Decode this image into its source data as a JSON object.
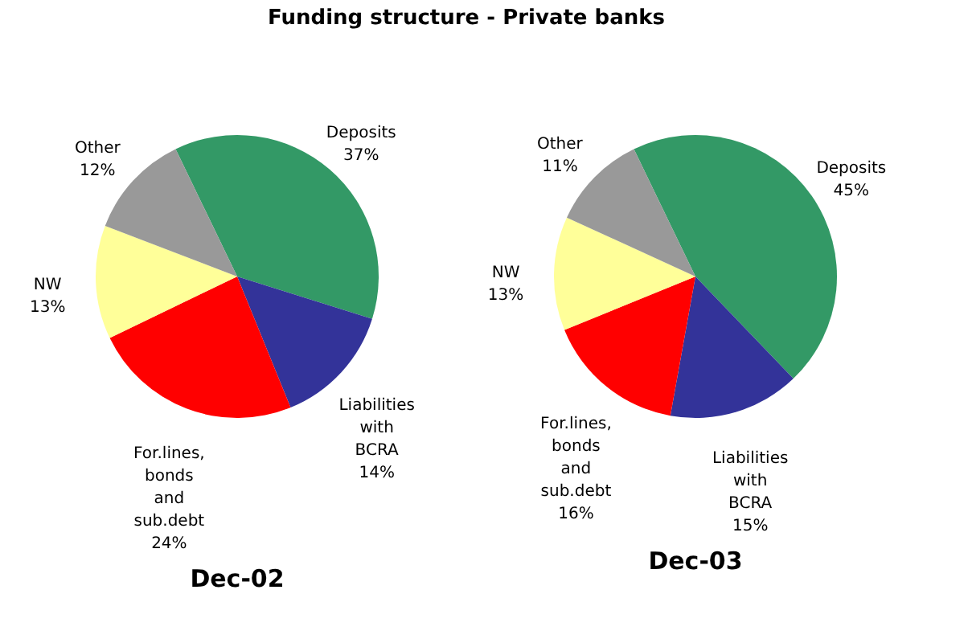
{
  "chart_data": [
    {
      "type": "pie",
      "title": "Dec-02",
      "annotations": [
        "Funding structure - Private banks"
      ],
      "categories": [
        "Deposits",
        "Liabilities with BCRA",
        "For.lines, bonds and sub.debt",
        "NW",
        "Other"
      ],
      "values": [
        37,
        14,
        24,
        13,
        12
      ],
      "colors": [
        "#339966",
        "#333399",
        "#ff0000",
        "#ffff99",
        "#999999"
      ],
      "value_labels": [
        "37%",
        "14%",
        "24%",
        "13%",
        "12%"
      ]
    },
    {
      "type": "pie",
      "title": "Dec-03",
      "categories": [
        "Deposits",
        "Liabilities with BCRA",
        "For.lines, bonds and sub.debt",
        "NW",
        "Other"
      ],
      "values": [
        45,
        15,
        16,
        13,
        11
      ],
      "colors": [
        "#339966",
        "#333399",
        "#ff0000",
        "#ffff99",
        "#999999"
      ],
      "value_labels": [
        "45%",
        "15%",
        "16%",
        "13%",
        "11%"
      ]
    }
  ]
}
